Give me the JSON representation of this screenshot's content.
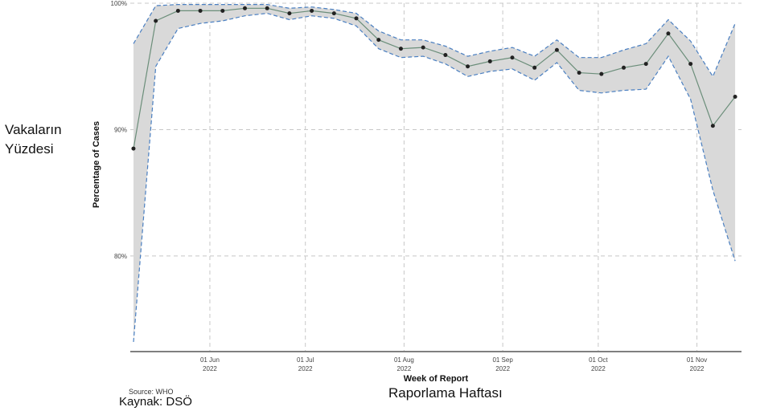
{
  "chart_data": {
    "type": "line",
    "ylabel": "Percentage of Cases",
    "xlabel": "Week of Report",
    "ylabel_translation": "Vakaların Yüzdesi",
    "xlabel_translation": "Raporlama Haftası",
    "source": "Source: WHO",
    "source_translation": "Kaynak: DSÖ",
    "ylim": [
      72.5,
      100
    ],
    "yticks": [
      {
        "value": 80,
        "label": "80%"
      },
      {
        "value": 90,
        "label": "90%"
      },
      {
        "value": 100,
        "label": "100%"
      }
    ],
    "xlim": [
      "2022-05-07",
      "2022-11-15"
    ],
    "xticks": [
      {
        "value": "2022-06-01",
        "label": "01 Jun",
        "sublabel": "2022"
      },
      {
        "value": "2022-07-01",
        "label": "01 Jul",
        "sublabel": "2022"
      },
      {
        "value": "2022-08-01",
        "label": "01 Aug",
        "sublabel": "2022"
      },
      {
        "value": "2022-09-01",
        "label": "01 Sep",
        "sublabel": "2022"
      },
      {
        "value": "2022-10-01",
        "label": "01 Oct",
        "sublabel": "2022"
      },
      {
        "value": "2022-11-01",
        "label": "01 Nov",
        "sublabel": "2022"
      }
    ],
    "grid": true,
    "colors": {
      "line": "#6b8e7a",
      "point": "#222222",
      "band_fill": "#d9d9d9",
      "band_edge": "#4a7fc1",
      "grid": "#c8c8c8",
      "axis": "#333333"
    },
    "series": [
      {
        "points": [
          {
            "x": "2022-05-08",
            "y": 88.5,
            "lo": 73.2,
            "hi": 96.8
          },
          {
            "x": "2022-05-15",
            "y": 98.6,
            "lo": 95.0,
            "hi": 99.8
          },
          {
            "x": "2022-05-22",
            "y": 99.4,
            "lo": 98.0,
            "hi": 99.9
          },
          {
            "x": "2022-05-29",
            "y": 99.4,
            "lo": 98.4,
            "hi": 99.9
          },
          {
            "x": "2022-06-05",
            "y": 99.4,
            "lo": 98.6,
            "hi": 99.9
          },
          {
            "x": "2022-06-12",
            "y": 99.6,
            "lo": 99.0,
            "hi": 99.9
          },
          {
            "x": "2022-06-19",
            "y": 99.6,
            "lo": 99.2,
            "hi": 99.9
          },
          {
            "x": "2022-06-26",
            "y": 99.2,
            "lo": 98.7,
            "hi": 99.6
          },
          {
            "x": "2022-07-03",
            "y": 99.4,
            "lo": 99.0,
            "hi": 99.7
          },
          {
            "x": "2022-07-10",
            "y": 99.2,
            "lo": 98.8,
            "hi": 99.5
          },
          {
            "x": "2022-07-17",
            "y": 98.8,
            "lo": 98.2,
            "hi": 99.2
          },
          {
            "x": "2022-07-24",
            "y": 97.1,
            "lo": 96.4,
            "hi": 97.8
          },
          {
            "x": "2022-07-31",
            "y": 96.4,
            "lo": 95.7,
            "hi": 97.1
          },
          {
            "x": "2022-08-07",
            "y": 96.5,
            "lo": 95.8,
            "hi": 97.1
          },
          {
            "x": "2022-08-14",
            "y": 95.9,
            "lo": 95.2,
            "hi": 96.6
          },
          {
            "x": "2022-08-21",
            "y": 95.0,
            "lo": 94.2,
            "hi": 95.8
          },
          {
            "x": "2022-08-28",
            "y": 95.4,
            "lo": 94.6,
            "hi": 96.2
          },
          {
            "x": "2022-09-04",
            "y": 95.7,
            "lo": 94.8,
            "hi": 96.5
          },
          {
            "x": "2022-09-11",
            "y": 94.9,
            "lo": 93.9,
            "hi": 95.8
          },
          {
            "x": "2022-09-18",
            "y": 96.3,
            "lo": 95.3,
            "hi": 97.1
          },
          {
            "x": "2022-09-25",
            "y": 94.5,
            "lo": 93.1,
            "hi": 95.7
          },
          {
            "x": "2022-10-02",
            "y": 94.4,
            "lo": 92.9,
            "hi": 95.7
          },
          {
            "x": "2022-10-09",
            "y": 94.9,
            "lo": 93.1,
            "hi": 96.3
          },
          {
            "x": "2022-10-16",
            "y": 95.2,
            "lo": 93.2,
            "hi": 96.8
          },
          {
            "x": "2022-10-23",
            "y": 97.6,
            "lo": 95.8,
            "hi": 98.7
          },
          {
            "x": "2022-10-30",
            "y": 95.2,
            "lo": 92.4,
            "hi": 97.0
          },
          {
            "x": "2022-11-06",
            "y": 90.3,
            "lo": 85.2,
            "hi": 94.2
          },
          {
            "x": "2022-11-13",
            "y": 92.6,
            "lo": 79.6,
            "hi": 98.4
          }
        ]
      }
    ]
  }
}
